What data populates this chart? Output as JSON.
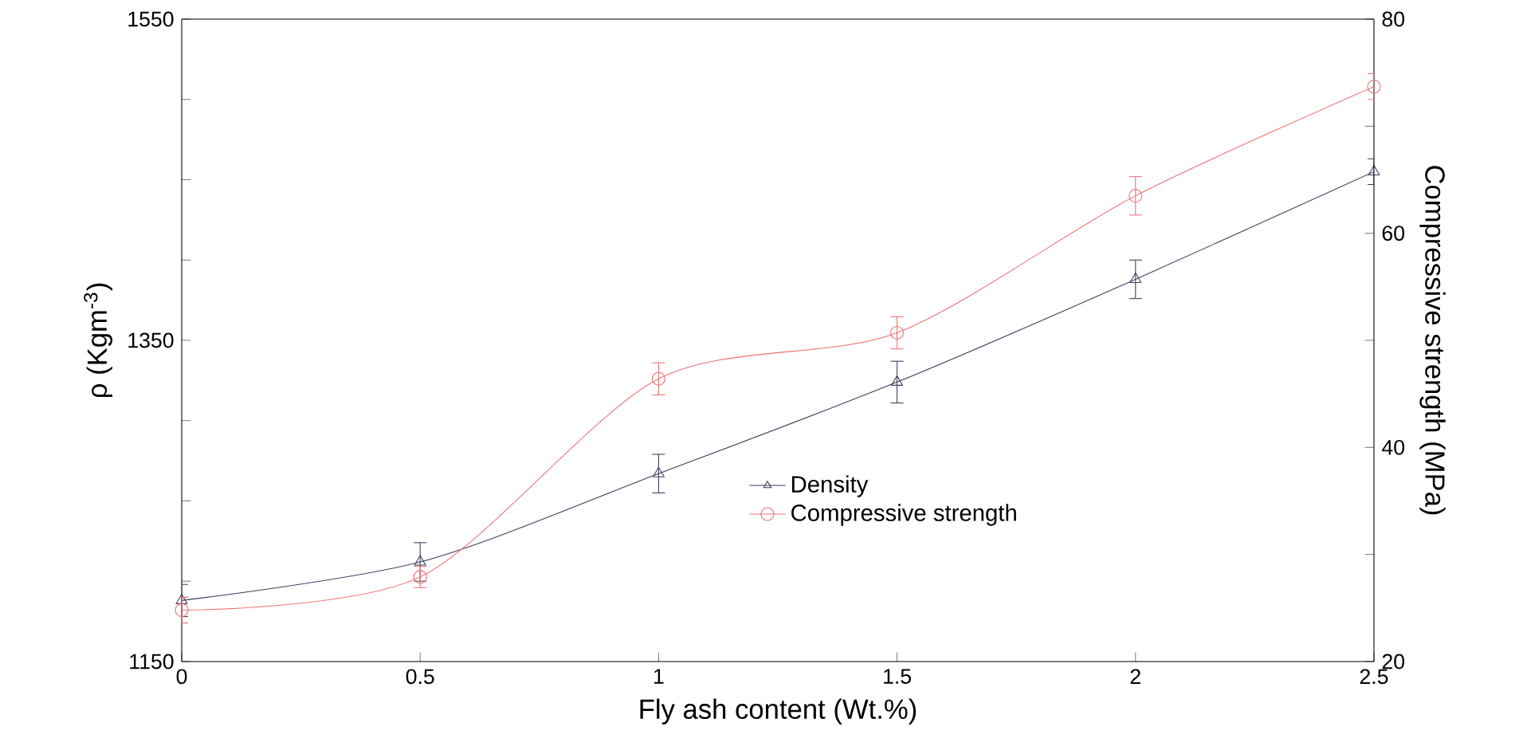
{
  "chart_data": {
    "type": "line",
    "xlabel": "Fly ash content (Wt.%)",
    "ylabel": "ρ (Kgm$^{-3}$)",
    "y2label": "Compressive strength (MPa)",
    "x": [
      0,
      0.5,
      1,
      1.5,
      2,
      2.5
    ],
    "series": [
      {
        "name": "Density",
        "color": "#3a3f5c",
        "marker": "triangle",
        "values": [
          1188,
          1212,
          1267,
          1324,
          1388,
          1455
        ],
        "errors": [
          10,
          12,
          12,
          13,
          12,
          8
        ]
      },
      {
        "name": "Compressive strength",
        "color": "#f07070",
        "marker": "circle",
        "axis": "y2",
        "values": [
          24.8,
          27.9,
          46.4,
          50.7,
          63.5,
          73.7
        ],
        "errors": [
          1.2,
          1,
          1.5,
          1.5,
          1.8,
          1.2
        ]
      }
    ],
    "xlim": [
      0,
      2.5
    ],
    "xticks": [
      0,
      0.5,
      1,
      1.5,
      2,
      2.5
    ],
    "ylim": [
      1150,
      1550
    ],
    "yticks": [
      1150,
      {
        "value": 1200,
        "label": null
      },
      {
        "value": 1250,
        "label": null
      },
      {
        "value": 1300,
        "label": null
      },
      1350,
      {
        "value": 1400,
        "label": null
      },
      {
        "value": 1450,
        "label": null
      },
      {
        "value": 1500,
        "label": null
      },
      1550
    ],
    "y2lim": [
      20,
      80
    ],
    "y2ticks": [
      20,
      {
        "value": 30,
        "label": null
      },
      40,
      {
        "value": 50,
        "label": null
      },
      60,
      {
        "value": 70,
        "label": null
      },
      80
    ],
    "grid": false,
    "legend": "bottom right",
    "line_style": "solid"
  }
}
